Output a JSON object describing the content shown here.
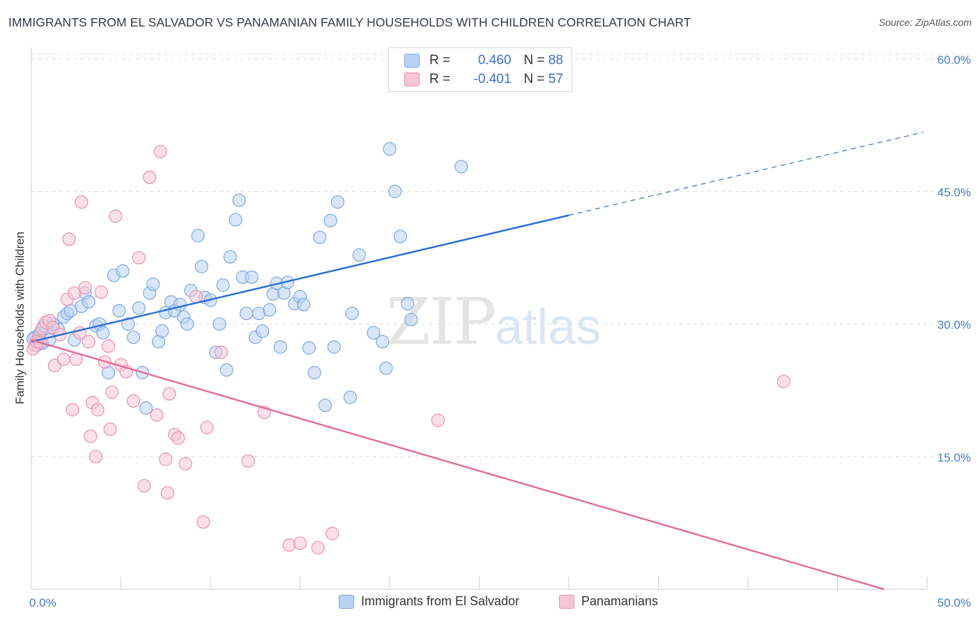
{
  "header": {
    "title": "IMMIGRANTS FROM EL SALVADOR VS PANAMANIAN FAMILY HOUSEHOLDS WITH CHILDREN CORRELATION CHART",
    "source": "Source: ZipAtlas.com"
  },
  "watermark": {
    "zip": "ZIP",
    "atlas": "atlas"
  },
  "legend_top": {
    "rows": [
      {
        "r_label": "R =",
        "r_value": "0.460",
        "n_label": "N =",
        "n_value": "88"
      },
      {
        "r_label": "R =",
        "r_value": "-0.401",
        "n_label": "N =",
        "n_value": "57"
      }
    ]
  },
  "legend_bottom": {
    "items": [
      "Immigrants from El Salvador",
      "Panamanians"
    ]
  },
  "colors": {
    "blue_fill": "#b9d2f3",
    "blue_stroke": "#7ea8e0",
    "blue_line": "#2e6fd1",
    "pink_fill": "#f7c6d6",
    "pink_stroke": "#e891ae",
    "pink_line": "#e0709a",
    "grid": "#dddddd",
    "tick_text": "#4a7cc4"
  },
  "chart_data": {
    "type": "scatter",
    "title": "IMMIGRANTS FROM EL SALVADOR VS PANAMANIAN FAMILY HOUSEHOLDS WITH CHILDREN CORRELATION CHART",
    "xlabel": "",
    "ylabel": "Family Households with Children",
    "xlim": [
      0,
      50
    ],
    "ylim": [
      0,
      60.5
    ],
    "x_tick_labels": [
      "0.0%",
      "50.0%"
    ],
    "y_ticks": [
      15,
      30,
      45,
      60
    ],
    "y_tick_labels": [
      "15.0%",
      "30.0%",
      "45.0%",
      "60.0%"
    ],
    "grid": true,
    "legend_placement": "top-center",
    "series": [
      {
        "name": "Immigrants from El Salvador",
        "r": 0.46,
        "n": 88,
        "trend": {
          "x0": 0,
          "y0": 28.0,
          "x1": 30.0,
          "y1": 42.3,
          "dashed_to_x": 49.8,
          "dashed_to_y": 51.7
        },
        "points": [
          [
            0.2,
            28.5
          ],
          [
            0.4,
            28.0
          ],
          [
            0.5,
            29.0
          ],
          [
            0.6,
            27.8
          ],
          [
            0.8,
            29.5
          ],
          [
            1.0,
            28.2
          ],
          [
            1.2,
            30.0
          ],
          [
            1.5,
            29.4
          ],
          [
            1.8,
            30.8
          ],
          [
            2.0,
            31.2
          ],
          [
            2.2,
            31.5
          ],
          [
            2.4,
            28.2
          ],
          [
            2.8,
            32.0
          ],
          [
            3.0,
            33.5
          ],
          [
            3.2,
            32.5
          ],
          [
            3.6,
            29.8
          ],
          [
            3.8,
            30.0
          ],
          [
            4.0,
            29.0
          ],
          [
            4.3,
            24.5
          ],
          [
            4.6,
            35.5
          ],
          [
            4.9,
            31.5
          ],
          [
            5.1,
            36.0
          ],
          [
            5.4,
            30.0
          ],
          [
            5.7,
            28.5
          ],
          [
            6.0,
            31.8
          ],
          [
            6.2,
            24.5
          ],
          [
            6.4,
            20.5
          ],
          [
            6.6,
            33.5
          ],
          [
            6.8,
            34.5
          ],
          [
            7.1,
            28.0
          ],
          [
            7.3,
            29.2
          ],
          [
            7.5,
            31.3
          ],
          [
            7.8,
            32.5
          ],
          [
            8.0,
            31.5
          ],
          [
            8.3,
            32.2
          ],
          [
            8.5,
            30.8
          ],
          [
            8.7,
            30.0
          ],
          [
            8.9,
            33.8
          ],
          [
            9.3,
            40.0
          ],
          [
            9.5,
            36.5
          ],
          [
            9.7,
            33.0
          ],
          [
            10.0,
            32.7
          ],
          [
            10.3,
            26.8
          ],
          [
            10.5,
            30.0
          ],
          [
            10.7,
            34.4
          ],
          [
            10.9,
            24.8
          ],
          [
            11.1,
            37.6
          ],
          [
            11.4,
            41.8
          ],
          [
            11.6,
            44.0
          ],
          [
            11.8,
            35.3
          ],
          [
            12.0,
            31.2
          ],
          [
            12.3,
            35.3
          ],
          [
            12.5,
            28.5
          ],
          [
            12.7,
            31.2
          ],
          [
            12.9,
            29.2
          ],
          [
            13.3,
            31.6
          ],
          [
            13.5,
            33.4
          ],
          [
            13.7,
            34.6
          ],
          [
            13.9,
            27.4
          ],
          [
            14.1,
            33.5
          ],
          [
            14.3,
            34.7
          ],
          [
            14.7,
            32.3
          ],
          [
            15.0,
            33.1
          ],
          [
            15.2,
            32.2
          ],
          [
            15.5,
            27.3
          ],
          [
            15.8,
            24.5
          ],
          [
            16.1,
            39.8
          ],
          [
            16.4,
            20.8
          ],
          [
            16.7,
            41.7
          ],
          [
            16.9,
            27.4
          ],
          [
            17.1,
            43.8
          ],
          [
            17.8,
            21.7
          ],
          [
            17.9,
            31.2
          ],
          [
            18.3,
            37.8
          ],
          [
            19.1,
            29.0
          ],
          [
            19.6,
            28.0
          ],
          [
            19.8,
            25.0
          ],
          [
            20.0,
            49.8
          ],
          [
            20.3,
            45.0
          ],
          [
            20.6,
            39.9
          ],
          [
            21.0,
            32.3
          ],
          [
            21.2,
            30.5
          ],
          [
            22.8,
            58.0
          ],
          [
            23.5,
            59.3
          ],
          [
            24.0,
            47.8
          ],
          [
            0.1,
            28.3
          ],
          [
            0.3,
            27.6
          ],
          [
            0.7,
            29.8
          ]
        ]
      },
      {
        "name": "Panamanians",
        "r": -0.401,
        "n": 57,
        "trend": {
          "x0": 0,
          "y0": 28.2,
          "x1": 47.6,
          "y1": 0
        },
        "points": [
          [
            0.2,
            27.6
          ],
          [
            0.4,
            28.5
          ],
          [
            0.6,
            29.5
          ],
          [
            0.8,
            30.2
          ],
          [
            1.0,
            30.4
          ],
          [
            1.2,
            29.6
          ],
          [
            1.3,
            25.3
          ],
          [
            1.6,
            28.8
          ],
          [
            1.8,
            26.0
          ],
          [
            2.0,
            32.8
          ],
          [
            2.1,
            39.6
          ],
          [
            2.3,
            20.3
          ],
          [
            2.4,
            33.5
          ],
          [
            2.5,
            26.0
          ],
          [
            2.7,
            29.0
          ],
          [
            2.8,
            43.8
          ],
          [
            3.0,
            34.1
          ],
          [
            3.2,
            28.0
          ],
          [
            3.3,
            17.3
          ],
          [
            3.4,
            21.1
          ],
          [
            3.6,
            15.0
          ],
          [
            3.7,
            20.3
          ],
          [
            3.9,
            33.6
          ],
          [
            4.1,
            25.7
          ],
          [
            4.3,
            27.5
          ],
          [
            4.4,
            18.1
          ],
          [
            4.5,
            22.3
          ],
          [
            4.7,
            42.2
          ],
          [
            5.0,
            25.4
          ],
          [
            5.3,
            24.6
          ],
          [
            5.7,
            21.3
          ],
          [
            6.0,
            37.5
          ],
          [
            6.3,
            11.7
          ],
          [
            6.6,
            46.6
          ],
          [
            7.0,
            19.7
          ],
          [
            7.2,
            49.5
          ],
          [
            7.5,
            14.7
          ],
          [
            7.6,
            10.9
          ],
          [
            7.7,
            22.1
          ],
          [
            8.0,
            17.5
          ],
          [
            8.2,
            17.1
          ],
          [
            8.6,
            14.2
          ],
          [
            9.2,
            33.1
          ],
          [
            9.6,
            7.6
          ],
          [
            9.8,
            18.3
          ],
          [
            10.6,
            26.8
          ],
          [
            12.1,
            14.5
          ],
          [
            13.0,
            20.0
          ],
          [
            14.4,
            5.0
          ],
          [
            15.0,
            5.2
          ],
          [
            16.0,
            4.7
          ],
          [
            16.8,
            6.3
          ],
          [
            22.7,
            19.1
          ],
          [
            42.0,
            23.5
          ],
          [
            0.1,
            27.2
          ],
          [
            0.3,
            28.0
          ],
          [
            0.5,
            27.9
          ]
        ]
      }
    ]
  }
}
